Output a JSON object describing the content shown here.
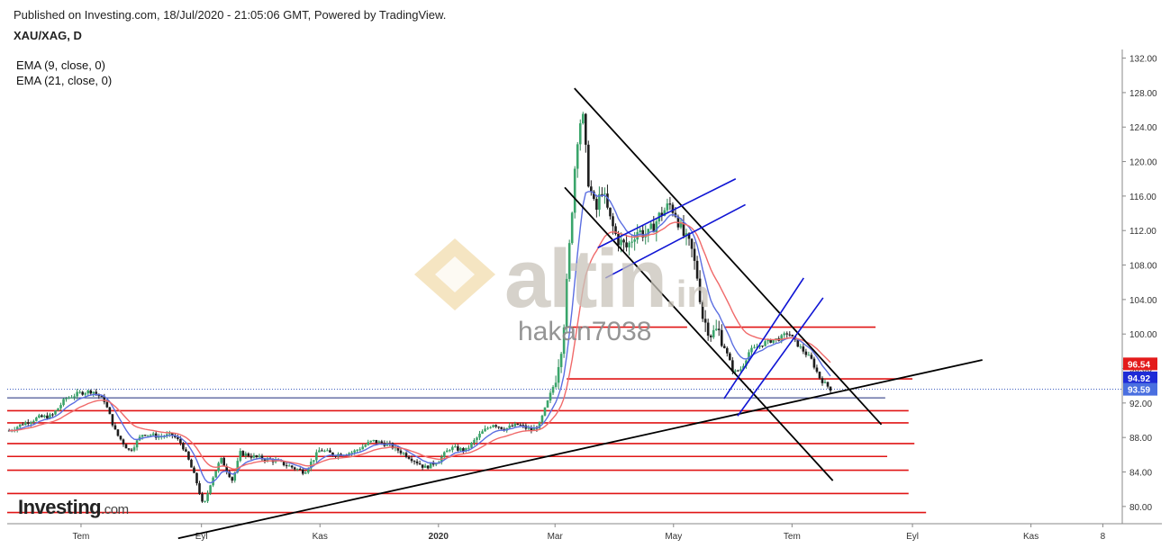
{
  "header": {
    "published": "Published on Investing.com, 18/Jul/2020 - 21:05:06 GMT, Powered by TradingView.",
    "symbol": "XAU/XAG, D"
  },
  "indicators": [
    {
      "label": "EMA (9, close, 0)",
      "color": "#5b6ee1"
    },
    {
      "label": "EMA (21, close, 0)",
      "color": "#f06a6a"
    }
  ],
  "brand": {
    "name": "Investing",
    "suffix": ".com"
  },
  "watermark": {
    "text": "altin",
    "suffix": ".in",
    "user": "hakan7038"
  },
  "chart_data": {
    "type": "line",
    "series_kind": "candlestick-daily",
    "y_range": [
      78,
      133
    ],
    "y_ticks": [
      80,
      84,
      88,
      92,
      96,
      100,
      104,
      108,
      112,
      116,
      120,
      124,
      128,
      132
    ],
    "y_tick_labels": [
      "80.00",
      "84.00",
      "88.00",
      "92.00",
      "96.00",
      "100.00",
      "104.00",
      "108.00",
      "112.00",
      "116.00",
      "120.00",
      "124.00",
      "128.00",
      "132.00"
    ],
    "x_labels": [
      {
        "label": "Tem",
        "day": 0
      },
      {
        "label": "Eyl",
        "day": 62
      },
      {
        "label": "Kas",
        "day": 123
      },
      {
        "label": "2020",
        "day": 184
      },
      {
        "label": "Mar",
        "day": 244
      },
      {
        "label": "May",
        "day": 305
      },
      {
        "label": "Tem",
        "day": 366
      },
      {
        "label": "Eyl",
        "day": 428
      },
      {
        "label": "Kas",
        "day": 489
      },
      {
        "label": "8",
        "day": 526
      }
    ],
    "x_range": [
      -38,
      536
    ],
    "price_path": [
      [
        -37,
        88.8
      ],
      [
        -30,
        89.6
      ],
      [
        -22,
        90.3
      ],
      [
        -15,
        90.5
      ],
      [
        -8,
        92.5
      ],
      [
        0,
        93.2
      ],
      [
        6,
        93.4
      ],
      [
        12,
        92.3
      ],
      [
        18,
        88.5
      ],
      [
        25,
        86.4
      ],
      [
        32,
        88.5
      ],
      [
        40,
        88.1
      ],
      [
        47,
        88.3
      ],
      [
        52,
        87.2
      ],
      [
        56,
        85.0
      ],
      [
        60,
        82.5
      ],
      [
        63,
        79.8
      ],
      [
        67,
        83.0
      ],
      [
        72,
        85.5
      ],
      [
        78,
        83.0
      ],
      [
        82,
        86.2
      ],
      [
        90,
        85.7
      ],
      [
        100,
        85.3
      ],
      [
        108,
        84.6
      ],
      [
        115,
        84.0
      ],
      [
        123,
        86.6
      ],
      [
        130,
        86.0
      ],
      [
        140,
        86.3
      ],
      [
        150,
        87.6
      ],
      [
        158,
        87.2
      ],
      [
        165,
        86.3
      ],
      [
        172,
        85.3
      ],
      [
        177,
        84.5
      ],
      [
        184,
        85.3
      ],
      [
        190,
        86.8
      ],
      [
        198,
        86.5
      ],
      [
        206,
        88.5
      ],
      [
        212,
        89.6
      ],
      [
        218,
        89.0
      ],
      [
        225,
        89.5
      ],
      [
        232,
        88.8
      ],
      [
        236,
        89.5
      ],
      [
        240,
        92.0
      ],
      [
        244,
        94.5
      ],
      [
        248,
        99.5
      ],
      [
        252,
        112.0
      ],
      [
        255,
        122.0
      ],
      [
        258,
        126.0
      ],
      [
        261,
        118.0
      ],
      [
        265,
        114.0
      ],
      [
        268,
        117.0
      ],
      [
        272,
        113.5
      ],
      [
        276,
        111.0
      ],
      [
        281,
        110.0
      ],
      [
        286,
        112.0
      ],
      [
        292,
        111.5
      ],
      [
        298,
        113.8
      ],
      [
        303,
        115.0
      ],
      [
        306,
        114.0
      ],
      [
        310,
        111.5
      ],
      [
        314,
        110.0
      ],
      [
        317,
        107.0
      ],
      [
        320,
        102.0
      ],
      [
        324,
        100.0
      ],
      [
        328,
        100.5
      ],
      [
        332,
        98.0
      ],
      [
        336,
        95.5
      ],
      [
        340,
        96.0
      ],
      [
        344,
        98.0
      ],
      [
        348,
        98.5
      ],
      [
        352,
        99.0
      ],
      [
        356,
        99.3
      ],
      [
        360,
        99.5
      ],
      [
        364,
        100.2
      ],
      [
        368,
        99.0
      ],
      [
        372,
        98.0
      ],
      [
        376,
        97.0
      ],
      [
        380,
        95.0
      ],
      [
        383,
        94.2
      ],
      [
        386,
        93.6
      ]
    ],
    "lines_horizontal_red": [
      {
        "y": 100.8,
        "x1": 250,
        "x2": 312
      },
      {
        "y": 100.8,
        "x1": 331,
        "x2": 409
      },
      {
        "y": 94.8,
        "x1": 250,
        "x2": 428
      },
      {
        "y": 91.1,
        "x1": -38,
        "x2": 426
      },
      {
        "y": 89.7,
        "x1": -38,
        "x2": 426
      },
      {
        "y": 87.3,
        "x1": -38,
        "x2": 429
      },
      {
        "y": 85.8,
        "x1": -38,
        "x2": 415
      },
      {
        "y": 84.2,
        "x1": -38,
        "x2": 426
      },
      {
        "y": 81.5,
        "x1": -38,
        "x2": 426
      },
      {
        "y": 79.3,
        "x1": -38,
        "x2": 435
      }
    ],
    "lines_trend_black": [
      {
        "x1": 50,
        "y1": 76.3,
        "x2": 464,
        "y2": 97.0
      },
      {
        "x1": 254,
        "y1": 128.5,
        "x2": 412,
        "y2": 89.5
      },
      {
        "x1": 249,
        "y1": 117.0,
        "x2": 387,
        "y2": 83.0
      }
    ],
    "lines_channel_blue": [
      {
        "x1": 266,
        "y1": 110.0,
        "x2": 337,
        "y2": 118.0
      },
      {
        "x1": 270,
        "y1": 106.5,
        "x2": 342,
        "y2": 115.0
      },
      {
        "x1": 331,
        "y1": 92.5,
        "x2": 372,
        "y2": 106.5
      },
      {
        "x1": 338,
        "y1": 90.5,
        "x2": 382,
        "y2": 104.2
      }
    ],
    "dotted_level": {
      "y": 93.6,
      "color": "#3f5fc0"
    },
    "navy_level": {
      "y": 92.6,
      "x1": -38,
      "x2": 414
    },
    "price_tags": [
      {
        "label": "96.54",
        "y": 96.54,
        "color": "#e31b1b"
      },
      {
        "label": "94.92",
        "y": 94.92,
        "color": "#1f2bd6"
      },
      {
        "label": "93.59",
        "y": 93.59,
        "color": "#4a6fe0"
      }
    ]
  }
}
